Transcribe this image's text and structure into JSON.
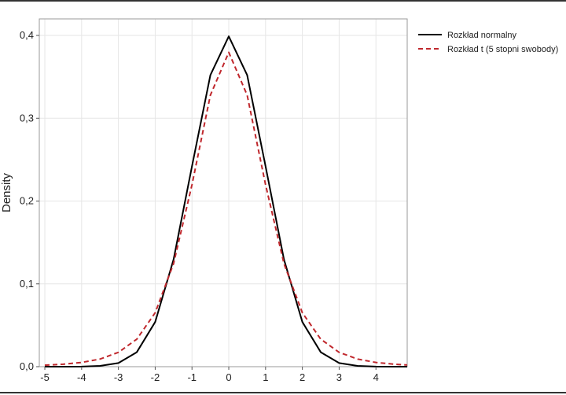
{
  "chart_data": {
    "type": "line",
    "xlabel": "",
    "ylabel": "Density",
    "xlim": [
      -5.15,
      4.85
    ],
    "ylim": [
      0,
      0.42
    ],
    "x_ticks": [
      -5,
      -4,
      -3,
      -2,
      -1,
      0,
      1,
      2,
      3,
      4
    ],
    "x_tick_labels": [
      "-5",
      "-4",
      "-3",
      "-2",
      "-1",
      "0",
      "1",
      "2",
      "3",
      "4"
    ],
    "y_ticks": [
      0,
      0.1,
      0.2,
      0.3,
      0.4
    ],
    "y_tick_labels": [
      "0,0",
      "0,1",
      "0,2",
      "0,3",
      "0,4"
    ],
    "grid": true,
    "legend_position": "right",
    "series": [
      {
        "name": "Rozkład normalny",
        "color": "#000000",
        "dash": "solid",
        "x": [
          -5,
          -4.5,
          -4,
          -3.5,
          -3,
          -2.5,
          -2,
          -1.5,
          -1,
          -0.5,
          0,
          0.5,
          1,
          1.5,
          2,
          2.5,
          3,
          3.5,
          4,
          4.5,
          4.85
        ],
        "y": [
          0.0,
          0.0,
          0.0001,
          0.0009,
          0.0044,
          0.0175,
          0.054,
          0.1295,
          0.242,
          0.3521,
          0.3989,
          0.3521,
          0.242,
          0.1295,
          0.054,
          0.0175,
          0.0044,
          0.0009,
          0.0001,
          0.0,
          0.0
        ]
      },
      {
        "name": "Rozkład t (5 stopni swobody)",
        "color": "#c0282d",
        "dash": "dashed",
        "x": [
          -5,
          -4.5,
          -4,
          -3.5,
          -3,
          -2.5,
          -2,
          -1.5,
          -1,
          -0.5,
          0,
          0.5,
          1,
          1.5,
          2,
          2.5,
          3,
          3.5,
          4,
          4.5,
          4.85
        ],
        "y": [
          0.0018,
          0.003,
          0.0051,
          0.0092,
          0.0173,
          0.0332,
          0.0651,
          0.1245,
          0.2197,
          0.3279,
          0.3796,
          0.3279,
          0.2197,
          0.1245,
          0.0651,
          0.0332,
          0.0173,
          0.0092,
          0.0051,
          0.003,
          0.002
        ]
      }
    ]
  }
}
